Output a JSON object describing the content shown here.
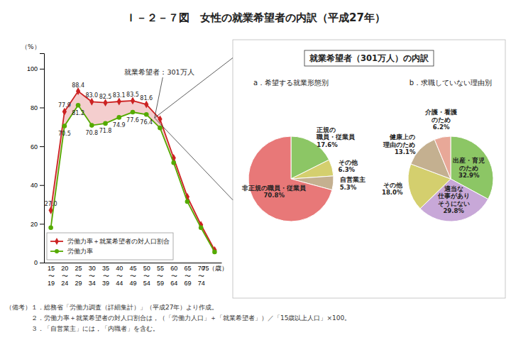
{
  "title": "Ｉ－２－７図　女性の就業希望者の内訳（平成27年）",
  "subtitle": "就業希望者（301万人）の内訳",
  "notes": [
    "（備考）１．総務省「労働力調査（詳細集計）」（平成27年）より作成。",
    "　　　　２．労働力率＋就業希望者の対人口割合は，（「労働力人口」＋「就業希望者」）／「15歳以上人口」×100。",
    "　　　　３．「自営業主」には，「内職者」を含む。"
  ],
  "chart_data": [
    {
      "type": "line",
      "ylabel": "（%）",
      "annotation": "就業希望者：301万人",
      "categories": [
        "15\n〜\n19",
        "20\n〜\n24",
        "25\n〜\n29",
        "30\n〜\n34",
        "35\n〜\n39",
        "40\n〜\n44",
        "45\n〜\n49",
        "50\n〜\n54",
        "55\n〜\n59",
        "60\n〜\n64",
        "65\n〜\n69",
        "70\n〜\n74",
        "75（歳）"
      ],
      "ylim": [
        0,
        108
      ],
      "yticks": [
        0,
        20,
        40,
        60,
        80,
        100
      ],
      "data_labels": true,
      "legend": "lower left",
      "series": [
        {
          "name": "労働力率＋就業希望者の対人口割合",
          "color": "#cc2222",
          "marker": "diamond",
          "values": [
            27.0,
            77.9,
            88.4,
            83.0,
            82.5,
            83.1,
            83.5,
            81.6,
            74.0,
            54.0,
            34.0,
            19.5,
            6.5
          ],
          "value_labels": [
            "27.0",
            "77.9",
            "88.4",
            "83.0",
            "82.5",
            "83.1",
            "83.5",
            "81.6",
            null,
            null,
            null,
            null,
            null
          ]
        },
        {
          "name": "労働力率",
          "color": "#55aa00",
          "marker": "circle",
          "values": [
            18.0,
            70.5,
            81.2,
            70.8,
            71.8,
            74.9,
            77.6,
            76.4,
            69.5,
            51.5,
            31.5,
            18.0,
            5.5
          ],
          "value_labels": [
            null,
            "70.5",
            "81.2",
            "70.8",
            "71.8",
            "74.9",
            "77.6",
            "76.4",
            null,
            null,
            null,
            null,
            null
          ]
        }
      ]
    },
    {
      "type": "pie",
      "title": "a．希望する就業形態別",
      "categories": [
        "正規の\n職員・従業員",
        "その他",
        "自営業主",
        "非正規の職員・従業員"
      ],
      "values": [
        17.6,
        6.3,
        5.3,
        70.8
      ],
      "value_labels": [
        "17.6%",
        "6.3%",
        "5.3%",
        "70.8%"
      ],
      "colors": [
        "#8cc665",
        "#d4cf6e",
        "#c4b090",
        "#e87878"
      ],
      "data_labels": true
    },
    {
      "type": "pie",
      "title": "b．求職していない理由別",
      "categories": [
        "出産・育児\nのため",
        "適当な\n仕事があり\nそうにない",
        "その他",
        "健康上の\n理由のため",
        "介護・看護\nのため"
      ],
      "values": [
        32.9,
        29.8,
        18.0,
        13.1,
        6.2
      ],
      "value_labels": [
        "32.9%",
        "29.8%",
        "18.0%",
        "13.1%",
        "6.2%"
      ],
      "colors": [
        "#8cc665",
        "#c8a8d8",
        "#d4cf6e",
        "#c4b090",
        "#e8a898"
      ],
      "data_labels": true
    }
  ]
}
